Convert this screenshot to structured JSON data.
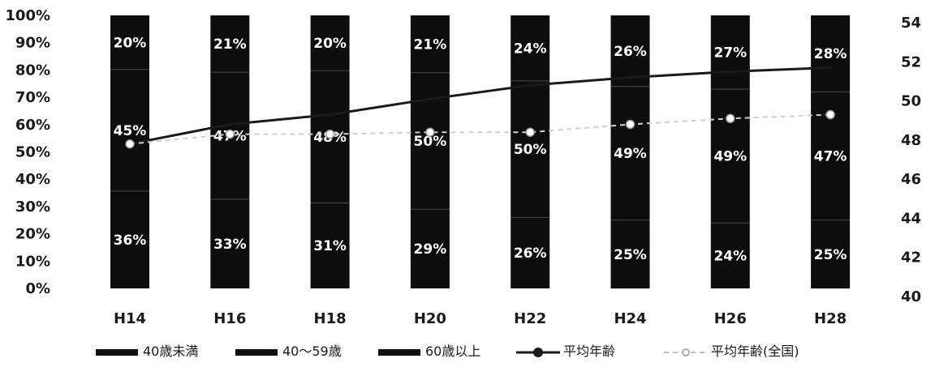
{
  "chart_data": {
    "type": "bar",
    "stacked": true,
    "percent_stacked": true,
    "categories": [
      "H14",
      "H16",
      "H18",
      "H20",
      "H22",
      "H24",
      "H26",
      "H28"
    ],
    "series": [
      {
        "name": "40歳未満",
        "values": [
          36,
          33,
          31,
          29,
          26,
          25,
          24,
          25
        ],
        "labels": [
          "36%",
          "33%",
          "31%",
          "29%",
          "26%",
          "25%",
          "24%",
          "25%"
        ]
      },
      {
        "name": "40～59歳",
        "values": [
          45,
          47,
          48,
          50,
          50,
          49,
          49,
          47
        ],
        "labels": [
          "45%",
          "47%",
          "48%",
          "50%",
          "50%",
          "49%",
          "49%",
          "47%"
        ]
      },
      {
        "name": "60歳以上",
        "values": [
          20,
          21,
          20,
          21,
          24,
          26,
          27,
          28
        ],
        "labels": [
          "20%",
          "21%",
          "20%",
          "21%",
          "24%",
          "26%",
          "27%",
          "28%"
        ]
      }
    ],
    "lines": [
      {
        "name": "平均年齢",
        "axis": "right",
        "style": "solid",
        "values": [
          47.8,
          48.8,
          49.3,
          50.1,
          50.8,
          51.2,
          51.5,
          51.7
        ]
      },
      {
        "name": "平均年齢(全国)",
        "axis": "right",
        "style": "dashed",
        "values": [
          47.8,
          48.3,
          48.3,
          48.4,
          48.4,
          48.8,
          49.1,
          49.3
        ]
      }
    ],
    "y_left": {
      "ticks": [
        "0%",
        "10%",
        "20%",
        "30%",
        "40%",
        "50%",
        "60%",
        "70%",
        "80%",
        "90%",
        "100%"
      ],
      "range": [
        0,
        100
      ]
    },
    "y_right": {
      "ticks": [
        "40",
        "42",
        "44",
        "46",
        "48",
        "50",
        "52",
        "54"
      ],
      "range": [
        40,
        54
      ]
    },
    "legend_position": "bottom",
    "bar_color": "#0d0d0d"
  }
}
